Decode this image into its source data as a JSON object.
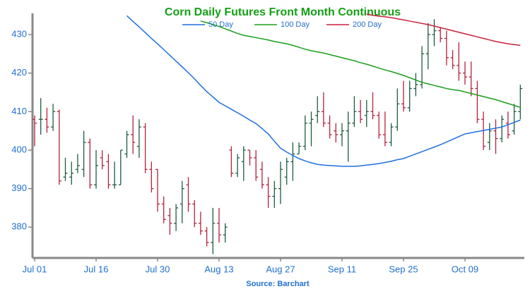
{
  "chart_data": {
    "type": "ohlc",
    "title": "Corn Daily Futures Front Month Continuous",
    "source": "Source: Barchart",
    "categories": [
      "Jul 01",
      null,
      null,
      null,
      null,
      null,
      null,
      null,
      null,
      null,
      "Jul 16",
      null,
      null,
      null,
      null,
      null,
      null,
      null,
      null,
      null,
      "Jul 30",
      null,
      null,
      null,
      null,
      null,
      null,
      null,
      null,
      null,
      "Aug 13",
      null,
      null,
      null,
      null,
      null,
      null,
      null,
      null,
      null,
      "Aug 27",
      null,
      null,
      null,
      null,
      null,
      null,
      null,
      null,
      null,
      "Sep 11",
      null,
      null,
      null,
      null,
      null,
      null,
      null,
      null,
      null,
      "Sep 25",
      null,
      null,
      null,
      null,
      null,
      null,
      null,
      null,
      null,
      "Oct 09",
      null,
      null,
      null,
      null,
      null,
      null,
      null,
      null,
      null
    ],
    "open": [
      408,
      408,
      408,
      406,
      410,
      393,
      393,
      395,
      395,
      402,
      391,
      398,
      397,
      391,
      391,
      399,
      404,
      401,
      406,
      395,
      395,
      386,
      383,
      381,
      386,
      391,
      386,
      381,
      379,
      376,
      381,
      378,
      400,
      394,
      397,
      400,
      398,
      395,
      391,
      388,
      390,
      393,
      397,
      399,
      401,
      407,
      409,
      410,
      407,
      405,
      404,
      405,
      407,
      410,
      409,
      410,
      409,
      404,
      402,
      406,
      412,
      411,
      416,
      417,
      425,
      430,
      431,
      429,
      424,
      422,
      420,
      419,
      416,
      408,
      402,
      405,
      403,
      407,
      405,
      410
    ],
    "high": [
      409,
      413.5,
      411,
      412,
      410.5,
      398,
      397,
      399,
      405,
      403,
      400,
      400,
      399,
      397,
      400,
      405,
      409,
      408,
      407,
      397,
      395,
      388,
      385,
      386,
      392,
      393,
      387,
      384,
      380,
      385,
      385,
      381,
      401,
      399,
      401,
      400,
      400,
      397,
      393,
      392,
      397,
      398,
      402,
      402,
      409,
      410,
      414,
      415,
      409,
      407,
      407,
      410,
      414,
      413,
      413,
      415,
      410,
      410,
      407,
      416,
      418,
      418,
      420,
      427,
      433,
      434,
      432,
      431,
      426,
      428,
      423,
      423,
      418,
      410,
      407,
      408,
      409,
      410,
      412,
      417
    ],
    "low": [
      401,
      404,
      404.5,
      405,
      391,
      392,
      391,
      394,
      393,
      390,
      390,
      395,
      390,
      390,
      391,
      398,
      399,
      398,
      394,
      389,
      384,
      381,
      378,
      379,
      381,
      384,
      380,
      378,
      375,
      373,
      376,
      376,
      393,
      393,
      392,
      396,
      392,
      390,
      385,
      385,
      386,
      391,
      392,
      399,
      400,
      401,
      407,
      406,
      403,
      402,
      401,
      397,
      406,
      407,
      406,
      408,
      403,
      401,
      401,
      405,
      410,
      410,
      414,
      416,
      421,
      427,
      428,
      422,
      421,
      418,
      417,
      414,
      407,
      400,
      400,
      399,
      402,
      403,
      404,
      408
    ],
    "close": [
      407,
      408,
      406,
      410,
      392,
      394,
      394,
      396,
      402,
      391,
      396,
      396,
      391,
      391,
      400,
      404,
      402,
      406,
      395,
      390,
      386,
      382,
      381,
      385,
      390,
      386,
      381,
      379,
      376,
      381,
      378,
      380,
      394,
      398,
      400,
      398,
      393,
      391,
      388,
      390,
      395,
      397,
      399,
      401,
      407,
      408,
      410,
      407,
      404,
      404,
      405,
      407,
      410,
      408,
      410,
      409,
      404,
      402,
      406,
      412,
      411,
      416,
      417,
      425,
      430,
      431,
      429,
      424,
      422,
      420,
      419,
      416,
      408,
      401,
      405,
      403,
      408,
      404,
      410,
      416
    ],
    "up_color": "#1d5c3f",
    "down_color": "#b5213a",
    "ylim": [
      372,
      435.5
    ],
    "yticks": [
      380,
      390,
      400,
      410,
      420,
      430
    ],
    "series": [
      {
        "name": "50 Day",
        "color": "#1e6fe0",
        "values": [
          null,
          null,
          null,
          null,
          null,
          null,
          null,
          null,
          null,
          null,
          null,
          null,
          null,
          null,
          null,
          434.9,
          433.4,
          432,
          430.5,
          429,
          427.6,
          426.1,
          424.6,
          423.1,
          421.6,
          420.1,
          418.5,
          416.8,
          415.2,
          413.8,
          412.4,
          411.5,
          410.6,
          409.7,
          408.8,
          407.8,
          406.9,
          405.6,
          404.2,
          402.3,
          400.5,
          399.5,
          398.6,
          397.8,
          397.2,
          396.7,
          396.3,
          396.1,
          396,
          395.9,
          395.8,
          395.8,
          395.8,
          395.9,
          396.1,
          396.3,
          396.5,
          396.8,
          397.1,
          397.5,
          397.8,
          398.4,
          399,
          399.6,
          400.2,
          400.8,
          401.4,
          402.1,
          402.8,
          403.5,
          404.2,
          404.5,
          404.8,
          405.1,
          405.4,
          405.7,
          406,
          406.6,
          407.2,
          407.8
        ]
      },
      {
        "name": "100 Day",
        "color": "#1a9e1a",
        "values": [
          null,
          null,
          null,
          null,
          null,
          null,
          null,
          null,
          null,
          null,
          null,
          null,
          null,
          null,
          null,
          null,
          null,
          null,
          null,
          null,
          null,
          null,
          null,
          null,
          null,
          null,
          null,
          433.5,
          433.1,
          432.6,
          432.1,
          431.5,
          430.9,
          430.3,
          429.8,
          429.5,
          429.2,
          428.9,
          428.6,
          428.2,
          427.9,
          427.6,
          427.2,
          426.7,
          426.2,
          425.8,
          425.5,
          425.2,
          424.8,
          424.4,
          424,
          423.6,
          423.2,
          422.7,
          422.3,
          421.8,
          421.3,
          420.8,
          420.4,
          419.9,
          419.4,
          418.8,
          418.2,
          417.6,
          417.2,
          416.8,
          416.4,
          416,
          415.7,
          415.5,
          415.1,
          414.7,
          414.3,
          413.9,
          413.5,
          413.1,
          412.6,
          412.1,
          411.6,
          411.1
        ]
      },
      {
        "name": "200 Day",
        "color": "#c8203c",
        "values": [
          null,
          null,
          null,
          null,
          null,
          null,
          null,
          null,
          null,
          null,
          null,
          null,
          null,
          null,
          null,
          null,
          null,
          null,
          null,
          null,
          null,
          null,
          null,
          null,
          null,
          null,
          null,
          null,
          null,
          null,
          null,
          null,
          null,
          null,
          null,
          null,
          null,
          null,
          null,
          null,
          null,
          null,
          null,
          null,
          null,
          null,
          null,
          null,
          null,
          null,
          null,
          null,
          null,
          null,
          435.3,
          435,
          434.8,
          434.6,
          434.4,
          434.1,
          433.8,
          433.5,
          433.2,
          432.9,
          432.6,
          432.2,
          431.8,
          431.4,
          431,
          430.6,
          430.2,
          429.8,
          429.4,
          429,
          428.6,
          428.2,
          427.9,
          427.6,
          427.4,
          427.2
        ]
      }
    ]
  }
}
